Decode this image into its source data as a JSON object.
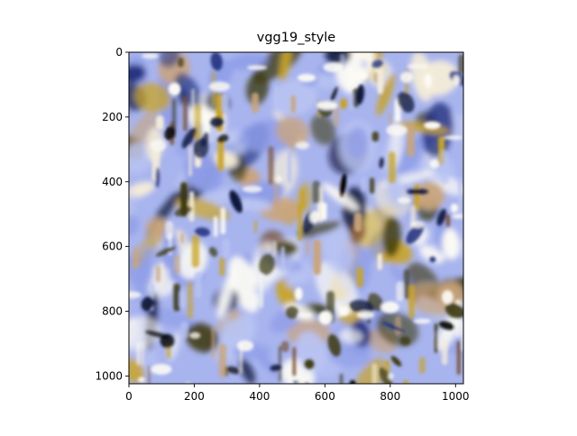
{
  "figure": {
    "title": "vgg19_style",
    "image": {
      "description_colors": {
        "periwinkle": "#8f9ee8",
        "light_blue": "#b9c4f2",
        "cream": "#f4ecd9",
        "white": "#fbfaf4",
        "tan": "#c9a57c",
        "brown": "#7a5030",
        "dark_navy": "#10183c",
        "deep_blue": "#1e2f7c",
        "olive": "#3d3a0e",
        "mustard": "#c9a423"
      }
    },
    "x_axis": {
      "ticks": [
        0,
        200,
        400,
        600,
        800,
        1000
      ],
      "lim": [
        0,
        1024
      ]
    },
    "y_axis": {
      "ticks": [
        0,
        200,
        400,
        600,
        800,
        1000
      ],
      "lim": [
        1024,
        0
      ]
    }
  }
}
